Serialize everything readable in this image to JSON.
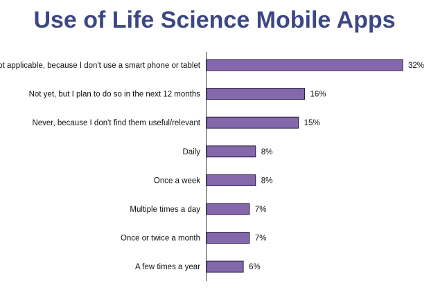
{
  "chart_data": {
    "type": "bar",
    "orientation": "horizontal",
    "title": "Use of Life Science Mobile Apps",
    "categories": [
      "Not applicable, because I don't use a smart phone or tablet",
      "Not yet, but I plan to do so in the next 12 months",
      "Never, because I don't find them useful/relevant",
      "Daily",
      "Once a week",
      "Multiple times a day",
      "Once or twice a month",
      "A few times a year"
    ],
    "values": [
      32,
      16,
      15,
      8,
      8,
      7,
      7,
      6
    ],
    "value_labels": [
      "32%",
      "16%",
      "15%",
      "8%",
      "8%",
      "7%",
      "7%",
      "6%"
    ],
    "unit": "%",
    "xlabel": "",
    "ylabel": "",
    "xlim": [
      0,
      32
    ],
    "grid": false,
    "legend": "none",
    "colors": {
      "bar": "#8567ac",
      "bar_border": "#2a2040",
      "title": "#3c4785"
    }
  }
}
